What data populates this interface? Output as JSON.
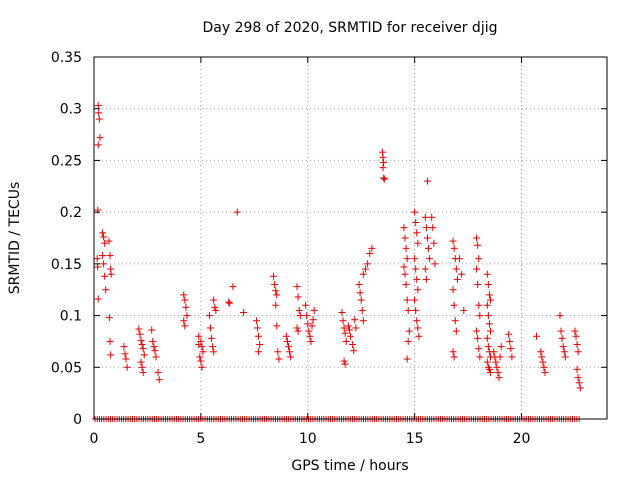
{
  "chart_data": {
    "type": "scatter",
    "title": "Day 298 of 2020, SRMTID for receiver djig",
    "xlabel": "GPS time / hours",
    "ylabel": "SRMTID / TECUs",
    "xlim": [
      0,
      24
    ],
    "ylim": [
      0,
      0.35
    ],
    "xticks": [
      0,
      5,
      10,
      15,
      20
    ],
    "yticks": [
      0,
      0.05,
      0.1,
      0.15,
      0.2,
      0.25,
      0.3,
      0.35
    ],
    "xtick_labels": [
      "0",
      "5",
      "10",
      "15",
      "20"
    ],
    "ytick_labels": [
      "0",
      "0.05",
      "0.1",
      "0.15",
      "0.2",
      "0.25",
      "0.3",
      "0.35"
    ],
    "grid": true,
    "marker": "+",
    "color": "#e00000",
    "series": [
      {
        "name": "SRMTID",
        "points": [
          [
            0.2,
            0.303
          ],
          [
            0.22,
            0.296
          ],
          [
            0.25,
            0.29
          ],
          [
            0.28,
            0.272
          ],
          [
            0.2,
            0.265
          ],
          [
            0.18,
            0.202
          ],
          [
            0.15,
            0.155
          ],
          [
            0.17,
            0.147
          ],
          [
            0.2,
            0.116
          ],
          [
            0.4,
            0.18
          ],
          [
            0.45,
            0.176
          ],
          [
            0.5,
            0.17
          ],
          [
            0.4,
            0.158
          ],
          [
            0.45,
            0.15
          ],
          [
            0.5,
            0.138
          ],
          [
            0.55,
            0.125
          ],
          [
            0.7,
            0.172
          ],
          [
            0.75,
            0.158
          ],
          [
            0.78,
            0.145
          ],
          [
            0.8,
            0.14
          ],
          [
            0.72,
            0.098
          ],
          [
            0.75,
            0.075
          ],
          [
            0.78,
            0.062
          ],
          [
            1.4,
            0.07
          ],
          [
            1.45,
            0.063
          ],
          [
            1.5,
            0.058
          ],
          [
            1.55,
            0.05
          ],
          [
            2.1,
            0.087
          ],
          [
            2.15,
            0.082
          ],
          [
            2.2,
            0.076
          ],
          [
            2.25,
            0.072
          ],
          [
            2.3,
            0.068
          ],
          [
            2.35,
            0.062
          ],
          [
            2.2,
            0.055
          ],
          [
            2.25,
            0.05
          ],
          [
            2.3,
            0.045
          ],
          [
            2.7,
            0.086
          ],
          [
            2.75,
            0.075
          ],
          [
            2.8,
            0.07
          ],
          [
            2.85,
            0.066
          ],
          [
            2.9,
            0.06
          ],
          [
            3.0,
            0.045
          ],
          [
            3.05,
            0.038
          ],
          [
            4.2,
            0.12
          ],
          [
            4.25,
            0.115
          ],
          [
            4.3,
            0.108
          ],
          [
            4.35,
            0.1
          ],
          [
            4.2,
            0.095
          ],
          [
            4.25,
            0.09
          ],
          [
            4.9,
            0.08
          ],
          [
            5.0,
            0.075
          ],
          [
            5.05,
            0.07
          ],
          [
            5.1,
            0.065
          ],
          [
            4.95,
            0.06
          ],
          [
            5.0,
            0.056
          ],
          [
            5.05,
            0.05
          ],
          [
            4.9,
            0.072
          ],
          [
            5.4,
            0.1
          ],
          [
            5.45,
            0.088
          ],
          [
            5.5,
            0.078
          ],
          [
            5.55,
            0.07
          ],
          [
            5.6,
            0.065
          ],
          [
            5.6,
            0.115
          ],
          [
            5.65,
            0.108
          ],
          [
            5.7,
            0.105
          ],
          [
            6.3,
            0.113
          ],
          [
            6.35,
            0.112
          ],
          [
            6.5,
            0.128
          ],
          [
            6.7,
            0.2
          ],
          [
            7.0,
            0.103
          ],
          [
            7.6,
            0.095
          ],
          [
            7.65,
            0.088
          ],
          [
            7.7,
            0.08
          ],
          [
            7.75,
            0.072
          ],
          [
            7.7,
            0.065
          ],
          [
            8.4,
            0.138
          ],
          [
            8.45,
            0.13
          ],
          [
            8.5,
            0.124
          ],
          [
            8.55,
            0.12
          ],
          [
            8.5,
            0.11
          ],
          [
            8.55,
            0.09
          ],
          [
            8.6,
            0.065
          ],
          [
            8.65,
            0.058
          ],
          [
            9.0,
            0.08
          ],
          [
            9.05,
            0.075
          ],
          [
            9.1,
            0.07
          ],
          [
            9.15,
            0.065
          ],
          [
            9.2,
            0.06
          ],
          [
            9.5,
            0.128
          ],
          [
            9.55,
            0.118
          ],
          [
            9.6,
            0.105
          ],
          [
            9.65,
            0.1
          ],
          [
            9.5,
            0.088
          ],
          [
            9.55,
            0.085
          ],
          [
            9.9,
            0.11
          ],
          [
            9.95,
            0.1
          ],
          [
            10.0,
            0.092
          ],
          [
            10.05,
            0.085
          ],
          [
            10.1,
            0.08
          ],
          [
            10.15,
            0.075
          ],
          [
            10.2,
            0.09
          ],
          [
            10.25,
            0.096
          ],
          [
            10.3,
            0.105
          ],
          [
            11.6,
            0.103
          ],
          [
            11.65,
            0.095
          ],
          [
            11.7,
            0.088
          ],
          [
            11.75,
            0.083
          ],
          [
            11.8,
            0.075
          ],
          [
            11.7,
            0.056
          ],
          [
            11.75,
            0.053
          ],
          [
            11.9,
            0.09
          ],
          [
            11.95,
            0.086
          ],
          [
            12.0,
            0.08
          ],
          [
            12.1,
            0.072
          ],
          [
            12.15,
            0.066
          ],
          [
            12.2,
            0.096
          ],
          [
            12.25,
            0.088
          ],
          [
            12.4,
            0.13
          ],
          [
            12.45,
            0.122
          ],
          [
            12.5,
            0.115
          ],
          [
            12.55,
            0.105
          ],
          [
            12.6,
            0.095
          ],
          [
            12.6,
            0.14
          ],
          [
            12.7,
            0.145
          ],
          [
            12.8,
            0.15
          ],
          [
            12.9,
            0.16
          ],
          [
            13.0,
            0.165
          ],
          [
            13.5,
            0.258
          ],
          [
            13.52,
            0.253
          ],
          [
            13.55,
            0.248
          ],
          [
            13.52,
            0.243
          ],
          [
            13.55,
            0.233
          ],
          [
            13.6,
            0.232
          ],
          [
            14.5,
            0.185
          ],
          [
            14.55,
            0.175
          ],
          [
            14.6,
            0.165
          ],
          [
            14.65,
            0.155
          ],
          [
            14.5,
            0.147
          ],
          [
            14.55,
            0.14
          ],
          [
            14.6,
            0.13
          ],
          [
            14.65,
            0.115
          ],
          [
            14.7,
            0.105
          ],
          [
            14.75,
            0.085
          ],
          [
            14.7,
            0.075
          ],
          [
            14.65,
            0.058
          ],
          [
            15.0,
            0.2
          ],
          [
            15.05,
            0.19
          ],
          [
            15.1,
            0.18
          ],
          [
            15.15,
            0.17
          ],
          [
            15.0,
            0.155
          ],
          [
            15.05,
            0.145
          ],
          [
            15.1,
            0.135
          ],
          [
            15.15,
            0.125
          ],
          [
            15.0,
            0.115
          ],
          [
            15.05,
            0.105
          ],
          [
            15.1,
            0.095
          ],
          [
            15.15,
            0.088
          ],
          [
            15.2,
            0.08
          ],
          [
            15.5,
            0.195
          ],
          [
            15.55,
            0.185
          ],
          [
            15.6,
            0.175
          ],
          [
            15.65,
            0.165
          ],
          [
            15.7,
            0.155
          ],
          [
            15.5,
            0.145
          ],
          [
            15.55,
            0.135
          ],
          [
            15.6,
            0.23
          ],
          [
            15.8,
            0.195
          ],
          [
            15.85,
            0.185
          ],
          [
            15.9,
            0.17
          ],
          [
            15.95,
            0.15
          ],
          [
            16.8,
            0.172
          ],
          [
            16.85,
            0.165
          ],
          [
            16.9,
            0.155
          ],
          [
            16.95,
            0.145
          ],
          [
            17.0,
            0.135
          ],
          [
            16.8,
            0.125
          ],
          [
            16.85,
            0.11
          ],
          [
            16.9,
            0.095
          ],
          [
            16.95,
            0.085
          ],
          [
            16.8,
            0.065
          ],
          [
            16.85,
            0.06
          ],
          [
            17.1,
            0.155
          ],
          [
            17.2,
            0.14
          ],
          [
            17.3,
            0.105
          ],
          [
            17.9,
            0.175
          ],
          [
            17.95,
            0.168
          ],
          [
            18.0,
            0.155
          ],
          [
            17.9,
            0.145
          ],
          [
            17.95,
            0.13
          ],
          [
            18.0,
            0.11
          ],
          [
            18.05,
            0.1
          ],
          [
            17.9,
            0.085
          ],
          [
            17.95,
            0.078
          ],
          [
            18.0,
            0.068
          ],
          [
            18.05,
            0.06
          ],
          [
            18.4,
            0.14
          ],
          [
            18.45,
            0.13
          ],
          [
            18.5,
            0.12
          ],
          [
            18.55,
            0.115
          ],
          [
            18.4,
            0.11
          ],
          [
            18.45,
            0.1
          ],
          [
            18.5,
            0.092
          ],
          [
            18.55,
            0.085
          ],
          [
            18.4,
            0.078
          ],
          [
            18.45,
            0.07
          ],
          [
            18.5,
            0.065
          ],
          [
            18.55,
            0.06
          ],
          [
            18.4,
            0.055
          ],
          [
            18.45,
            0.05
          ],
          [
            18.5,
            0.048
          ],
          [
            18.55,
            0.045
          ],
          [
            18.7,
            0.065
          ],
          [
            18.75,
            0.06
          ],
          [
            18.8,
            0.055
          ],
          [
            18.85,
            0.05
          ],
          [
            18.9,
            0.045
          ],
          [
            18.95,
            0.04
          ],
          [
            19.0,
            0.06
          ],
          [
            19.05,
            0.07
          ],
          [
            19.4,
            0.082
          ],
          [
            19.45,
            0.075
          ],
          [
            19.5,
            0.068
          ],
          [
            19.55,
            0.06
          ],
          [
            20.7,
            0.08
          ],
          [
            20.9,
            0.065
          ],
          [
            20.95,
            0.06
          ],
          [
            21.0,
            0.055
          ],
          [
            21.05,
            0.05
          ],
          [
            21.1,
            0.045
          ],
          [
            21.8,
            0.1
          ],
          [
            21.85,
            0.085
          ],
          [
            21.9,
            0.078
          ],
          [
            21.95,
            0.07
          ],
          [
            22.0,
            0.065
          ],
          [
            22.05,
            0.06
          ],
          [
            22.5,
            0.085
          ],
          [
            22.55,
            0.08
          ],
          [
            22.6,
            0.072
          ],
          [
            22.65,
            0.065
          ],
          [
            22.6,
            0.048
          ],
          [
            22.65,
            0.04
          ],
          [
            22.7,
            0.035
          ],
          [
            22.75,
            0.03
          ]
        ]
      }
    ]
  }
}
